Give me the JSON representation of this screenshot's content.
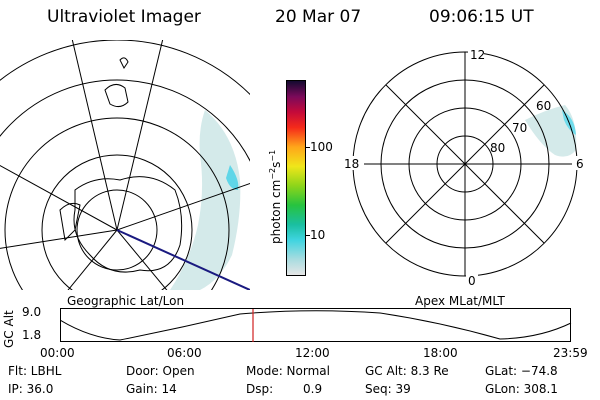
{
  "header": {
    "instrument": "Ultraviolet Imager",
    "date": "20 Mar 07",
    "time": "09:06:15 UT"
  },
  "left_panel": {
    "caption": "Geographic Lat/Lon"
  },
  "right_panel": {
    "caption": "Apex MLat/MLT",
    "mlt_labels": [
      "12",
      "18",
      "6",
      "0"
    ],
    "mlat_labels": [
      "60",
      "70",
      "80"
    ]
  },
  "colorbar": {
    "label": "photon cm",
    "label_sup1": "−2",
    "label_mid": "s",
    "label_sup2": "−1",
    "ticks": [
      "100",
      "10"
    ]
  },
  "orbit_plot": {
    "ylabel": "GC Alt",
    "yticks": [
      "9.0",
      "1.8"
    ],
    "time_ticks": [
      "00:00",
      "06:00",
      "12:00",
      "18:00",
      "23:59"
    ]
  },
  "info": {
    "row1": {
      "filter": "Flt: LBHL",
      "door": "Door: Open",
      "mode": "Mode: Normal",
      "gc_alt": "GC Alt: 8.3 Re",
      "glat": "GLat: −74.8"
    },
    "row2": {
      "ip": "IP: 36.0",
      "gain": "Gain: 14",
      "dsp_label": "Dsp:",
      "dsp_value": "0.9",
      "seq": "Seq: 39",
      "glon": "GLon: 308.1"
    }
  },
  "colors": {
    "aurora": "#cfe9e9",
    "aurora_bright": "#4fd8ec",
    "orbit_marker": "#d02020",
    "track": "#1a1a80"
  }
}
